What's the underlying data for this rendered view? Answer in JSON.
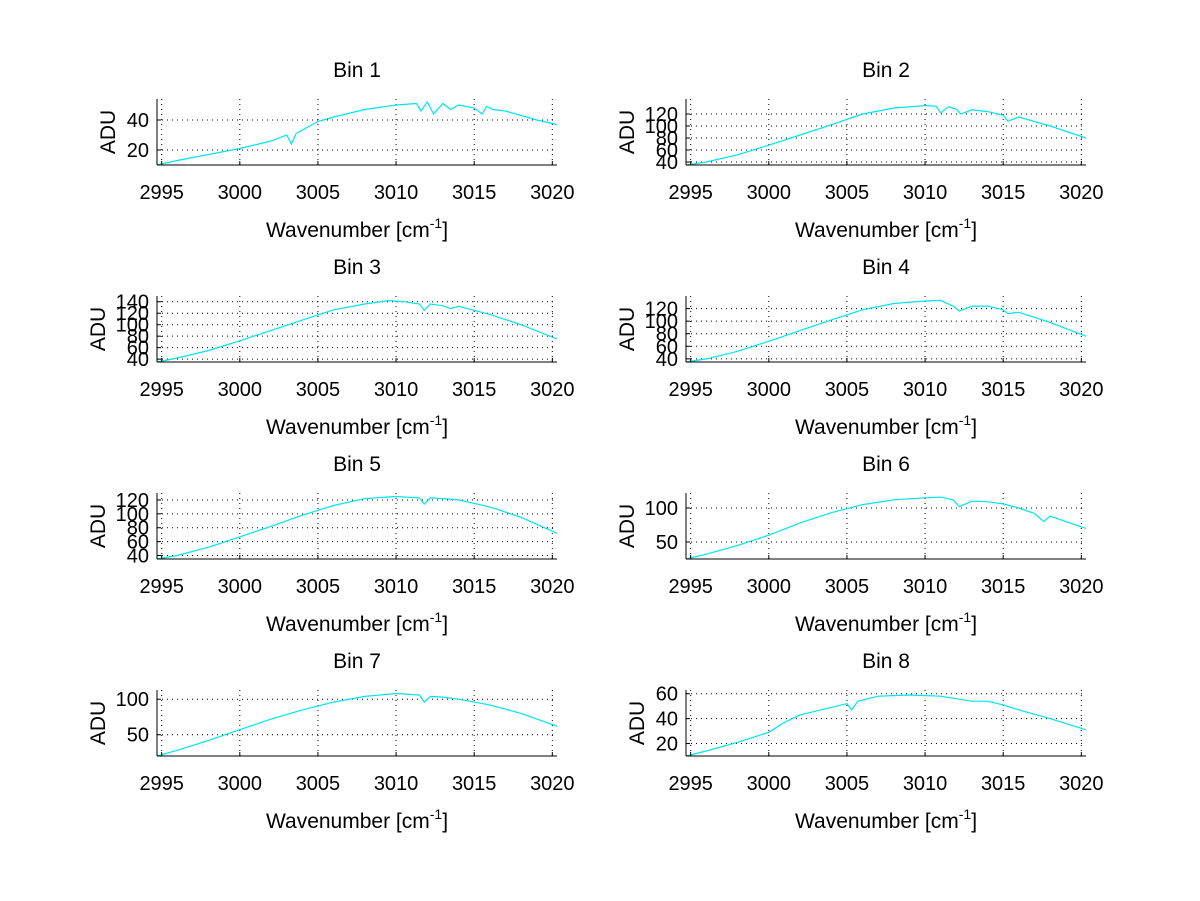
{
  "chart_data": [
    {
      "type": "line",
      "title": "Bin 1",
      "xlabel": "Wavenumber [cm",
      "xlabel_sup": "-1",
      "xlabel_end": "]",
      "ylabel": "ADU",
      "xlim": [
        2994.7,
        3020.3
      ],
      "ylim": [
        10,
        54
      ],
      "xticks": [
        2995,
        3000,
        3005,
        3010,
        3015,
        3020
      ],
      "yticks": [
        20,
        40
      ],
      "color": "#00e5ee",
      "series": [
        {
          "x": [
            2994.7,
            2996,
            2998,
            3000,
            3002,
            3003,
            3003.3,
            3003.6,
            3005,
            3006,
            3008,
            3010,
            3011.3,
            3011.6,
            3012,
            3012.4,
            3013,
            3013.5,
            3014,
            3015,
            3015.5,
            3015.8,
            3016.2,
            3017,
            3018,
            3019,
            3020.3
          ],
          "y": [
            10,
            13,
            17,
            21,
            26,
            30,
            24,
            31,
            39,
            42,
            47,
            50,
            51,
            46,
            52,
            44,
            51,
            47,
            50,
            48,
            44,
            49,
            47,
            46,
            43,
            40,
            37
          ]
        }
      ]
    },
    {
      "type": "line",
      "title": "Bin 2",
      "xlabel": "Wavenumber [cm",
      "xlabel_sup": "-1",
      "xlabel_end": "]",
      "ylabel": "ADU",
      "xlim": [
        2994.7,
        3020.3
      ],
      "ylim": [
        35,
        145
      ],
      "xticks": [
        2995,
        3000,
        3005,
        3010,
        3015,
        3020
      ],
      "yticks": [
        40,
        60,
        80,
        100,
        120
      ],
      "color": "#00e5ee",
      "series": [
        {
          "x": [
            2994.7,
            2996,
            2998,
            3000,
            3002,
            3004,
            3006,
            3008,
            3010,
            3010.7,
            3011,
            3011.5,
            3012,
            3012.3,
            3013,
            3014,
            3015,
            3015.3,
            3016,
            3018,
            3020.3
          ],
          "y": [
            35,
            40,
            52,
            68,
            85,
            102,
            120,
            130,
            134,
            133,
            122,
            132,
            128,
            120,
            127,
            124,
            118,
            108,
            115,
            100,
            80
          ]
        }
      ]
    },
    {
      "type": "line",
      "title": "Bin 3",
      "xlabel": "Wavenumber [cm",
      "xlabel_sup": "-1",
      "xlabel_end": "]",
      "ylabel": "ADU",
      "xlim": [
        2994.7,
        3020.3
      ],
      "ylim": [
        35,
        150
      ],
      "xticks": [
        2995,
        3000,
        3005,
        3010,
        3015,
        3020
      ],
      "yticks": [
        40,
        60,
        80,
        100,
        120,
        140
      ],
      "color": "#00e5ee",
      "series": [
        {
          "x": [
            2994.7,
            2996,
            2998,
            3000,
            3002,
            3004,
            3006,
            3008,
            3009.5,
            3010.5,
            3011.5,
            3011.8,
            3012.2,
            3013,
            3013.5,
            3014,
            3016,
            3018,
            3020.3
          ],
          "y": [
            35,
            42,
            55,
            72,
            90,
            108,
            126,
            136,
            142,
            140,
            136,
            125,
            136,
            133,
            128,
            132,
            118,
            100,
            75
          ]
        }
      ]
    },
    {
      "type": "line",
      "title": "Bin 4",
      "xlabel": "Wavenumber [cm",
      "xlabel_sup": "-1",
      "xlabel_end": "]",
      "ylabel": "ADU",
      "xlim": [
        2994.7,
        3020.3
      ],
      "ylim": [
        35,
        140
      ],
      "xticks": [
        2995,
        3000,
        3005,
        3010,
        3015,
        3020
      ],
      "yticks": [
        40,
        60,
        80,
        100,
        120
      ],
      "color": "#00e5ee",
      "series": [
        {
          "x": [
            2994.7,
            2996,
            2998,
            3000,
            3002,
            3004,
            3006,
            3008,
            3010,
            3011,
            3011.8,
            3012.2,
            3013,
            3014,
            3015,
            3015.3,
            3016,
            3018,
            3020.3
          ],
          "y": [
            35,
            40,
            52,
            68,
            85,
            102,
            118,
            128,
            132,
            133,
            124,
            116,
            124,
            124,
            118,
            112,
            114,
            98,
            76
          ]
        }
      ]
    },
    {
      "type": "line",
      "title": "Bin 5",
      "xlabel": "Wavenumber [cm",
      "xlabel_sup": "-1",
      "xlabel_end": "]",
      "ylabel": "ADU",
      "xlim": [
        2994.7,
        3020.3
      ],
      "ylim": [
        35,
        130
      ],
      "xticks": [
        2995,
        3000,
        3005,
        3010,
        3015,
        3020
      ],
      "yticks": [
        40,
        60,
        80,
        100,
        120
      ],
      "color": "#00e5ee",
      "series": [
        {
          "x": [
            2994.7,
            2996,
            2998,
            3000,
            3002,
            3004,
            3006,
            3008,
            3010,
            3011.5,
            3011.8,
            3012.2,
            3013,
            3014,
            3016,
            3018,
            3020.3
          ],
          "y": [
            35,
            40,
            52,
            67,
            82,
            98,
            112,
            122,
            125,
            123,
            114,
            123,
            122,
            120,
            110,
            95,
            72
          ]
        }
      ]
    },
    {
      "type": "line",
      "title": "Bin 6",
      "xlabel": "Wavenumber [cm",
      "xlabel_sup": "-1",
      "xlabel_end": "]",
      "ylabel": "ADU",
      "xlim": [
        2994.7,
        3020.3
      ],
      "ylim": [
        25,
        122
      ],
      "xticks": [
        2995,
        3000,
        3005,
        3010,
        3015,
        3020
      ],
      "yticks": [
        50,
        100
      ],
      "color": "#00e5ee",
      "series": [
        {
          "x": [
            2994.7,
            2996,
            2998,
            3000,
            3002,
            3004,
            3006,
            3008,
            3010,
            3011,
            3011.8,
            3012.2,
            3013,
            3014,
            3015,
            3016,
            3017,
            3017.6,
            3018,
            3019,
            3020.3
          ],
          "y": [
            25,
            32,
            45,
            60,
            78,
            93,
            105,
            112,
            115,
            116,
            112,
            102,
            110,
            109,
            106,
            100,
            92,
            80,
            88,
            80,
            70
          ]
        }
      ]
    },
    {
      "type": "line",
      "title": "Bin 7",
      "xlabel": "Wavenumber [cm",
      "xlabel_sup": "-1",
      "xlabel_end": "]",
      "ylabel": "ADU",
      "xlim": [
        2994.7,
        3020.3
      ],
      "ylim": [
        20,
        113
      ],
      "xticks": [
        2995,
        3000,
        3005,
        3010,
        3015,
        3020
      ],
      "yticks": [
        50,
        100
      ],
      "color": "#00e5ee",
      "series": [
        {
          "x": [
            2994.7,
            2996,
            2998,
            3000,
            3002,
            3004,
            3006,
            3008,
            3010,
            3011.5,
            3011.8,
            3012.2,
            3013,
            3014,
            3016,
            3018,
            3020.3
          ],
          "y": [
            20,
            28,
            42,
            57,
            72,
            85,
            96,
            104,
            108,
            106,
            96,
            104,
            103,
            100,
            92,
            80,
            62
          ]
        }
      ]
    },
    {
      "type": "line",
      "title": "Bin 8",
      "xlabel": "Wavenumber [cm",
      "xlabel_sup": "-1",
      "xlabel_end": "]",
      "ylabel": "ADU",
      "xlim": [
        2994.7,
        3020.3
      ],
      "ylim": [
        10,
        63
      ],
      "xticks": [
        2995,
        3000,
        3005,
        3010,
        3015,
        3020
      ],
      "yticks": [
        20,
        40,
        60
      ],
      "color": "#00e5ee",
      "series": [
        {
          "x": [
            2994.7,
            2996,
            2998,
            3000,
            3001,
            3002,
            3004,
            3005,
            3005.3,
            3005.7,
            3007,
            3009,
            3011,
            3012,
            3013,
            3014,
            3015,
            3016,
            3018,
            3020.3
          ],
          "y": [
            10,
            14,
            21,
            29,
            37,
            43,
            49,
            52,
            47,
            54,
            58,
            59,
            58,
            56,
            54,
            54,
            51,
            47,
            40,
            31
          ]
        }
      ]
    }
  ]
}
